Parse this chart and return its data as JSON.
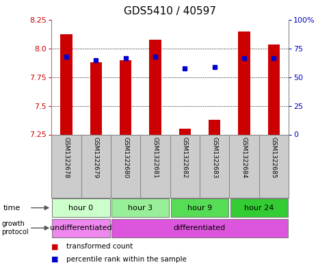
{
  "title": "GDS5410 / 40597",
  "samples": [
    "GSM1322678",
    "GSM1322679",
    "GSM1322680",
    "GSM1322681",
    "GSM1322682",
    "GSM1322683",
    "GSM1322684",
    "GSM1322685"
  ],
  "transformed_count": [
    8.13,
    7.88,
    7.9,
    8.08,
    7.3,
    7.38,
    8.15,
    8.04
  ],
  "percentile_rank": [
    68,
    65,
    67,
    68,
    58,
    59,
    67,
    67
  ],
  "ylim_left": [
    7.25,
    8.25
  ],
  "ylim_right": [
    0,
    100
  ],
  "yticks_left": [
    7.25,
    7.5,
    7.75,
    8.0,
    8.25
  ],
  "yticks_right": [
    0,
    25,
    50,
    75,
    100
  ],
  "ytick_labels_right": [
    "0",
    "25",
    "50",
    "75",
    "100%"
  ],
  "bar_color": "#cc0000",
  "dot_color": "#0000cc",
  "bar_bottom": 7.25,
  "time_groups": [
    {
      "label": "hour 0",
      "start": 0,
      "end": 2,
      "color": "#ccffcc"
    },
    {
      "label": "hour 3",
      "start": 2,
      "end": 4,
      "color": "#99ee99"
    },
    {
      "label": "hour 9",
      "start": 4,
      "end": 6,
      "color": "#55dd55"
    },
    {
      "label": "hour 24",
      "start": 6,
      "end": 8,
      "color": "#33cc33"
    }
  ],
  "growth_groups": [
    {
      "label": "undifferentiated",
      "start": 0,
      "end": 2,
      "color": "#ee88ee"
    },
    {
      "label": "differentiated",
      "start": 2,
      "end": 8,
      "color": "#dd55dd"
    }
  ],
  "legend_items": [
    {
      "label": "transformed count",
      "color": "#cc0000"
    },
    {
      "label": "percentile rank within the sample",
      "color": "#0000cc"
    }
  ],
  "bg": "#ffffff",
  "sample_bg": "#cccccc",
  "sample_border": "#888888"
}
